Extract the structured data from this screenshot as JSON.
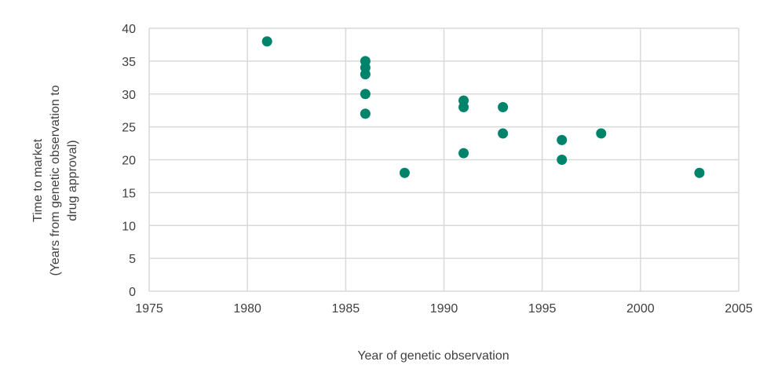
{
  "chart_data": {
    "type": "scatter",
    "xlabel": "Year of genetic observation",
    "ylabel_lines": [
      "Time to market",
      "(Years from genetic observation to",
      "drug approval)"
    ],
    "xlim": [
      1975,
      2005
    ],
    "ylim": [
      0,
      40
    ],
    "x_ticks": [
      1975,
      1980,
      1985,
      1990,
      1995,
      2000,
      2005
    ],
    "y_ticks": [
      0,
      5,
      10,
      15,
      20,
      25,
      30,
      35,
      40
    ],
    "grid": true,
    "points": [
      {
        "x": 1981,
        "y": 38
      },
      {
        "x": 1986,
        "y": 35
      },
      {
        "x": 1986,
        "y": 34
      },
      {
        "x": 1986,
        "y": 33
      },
      {
        "x": 1986,
        "y": 30
      },
      {
        "x": 1986,
        "y": 27
      },
      {
        "x": 1988,
        "y": 18
      },
      {
        "x": 1991,
        "y": 29
      },
      {
        "x": 1991,
        "y": 28
      },
      {
        "x": 1991,
        "y": 21
      },
      {
        "x": 1993,
        "y": 28
      },
      {
        "x": 1993,
        "y": 24
      },
      {
        "x": 1996,
        "y": 23
      },
      {
        "x": 1996,
        "y": 20
      },
      {
        "x": 1998,
        "y": 24
      },
      {
        "x": 2003,
        "y": 18
      }
    ],
    "marker_color": "#00836b",
    "grid_color": "#d9d9d9"
  }
}
